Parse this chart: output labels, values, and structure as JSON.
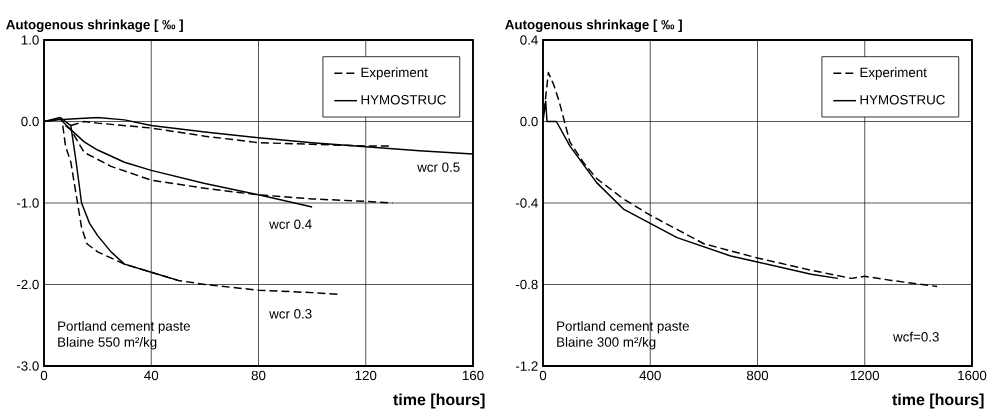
{
  "chart_data": [
    {
      "type": "line",
      "ylabel": "Autogenous shrinkage [ ‰ ]",
      "xlabel": "time [hours]",
      "xlim": [
        0,
        160
      ],
      "xticks": [
        0,
        40,
        80,
        120,
        160
      ],
      "ylim": [
        -3,
        1
      ],
      "yticks": [
        {
          "value": -3,
          "label": "-3.0"
        },
        {
          "value": -2,
          "label": "-2.0"
        },
        {
          "value": -1,
          "label": "-1.0"
        },
        {
          "value": 0,
          "label": "0.0"
        },
        {
          "value": 1,
          "label": "1.0"
        }
      ],
      "grid": true,
      "legend": "top right",
      "series": [
        {
          "name": "Experiment",
          "color": "#000000",
          "line_style": "dashed",
          "x": [
            10,
            15,
            20,
            40,
            60,
            80,
            100,
            120,
            130
          ],
          "values": [
            -0.05,
            0,
            -0.02,
            -0.08,
            -0.18,
            -0.26,
            -0.28,
            -0.3,
            -0.3
          ]
        },
        {
          "name": "HYMOSTRUC",
          "color": "#000000",
          "line_style": "solid",
          "x": [
            0,
            5,
            10,
            20,
            30,
            40,
            60,
            80,
            100,
            120,
            140,
            160
          ],
          "values": [
            0,
            0.02,
            0.03,
            0.05,
            0.02,
            -0.05,
            -0.13,
            -0.2,
            -0.26,
            -0.31,
            -0.36,
            -0.4
          ]
        },
        {
          "color": "#000000",
          "line_style": "dashed",
          "x": [
            8,
            10,
            15,
            25,
            40,
            60,
            80,
            100,
            120,
            130
          ],
          "values": [
            -0.05,
            -0.1,
            -0.38,
            -0.55,
            -0.72,
            -0.82,
            -0.9,
            -0.95,
            -0.98,
            -1.0
          ]
        },
        {
          "color": "#000000",
          "line_style": "solid",
          "x": [
            0,
            6,
            10,
            15,
            20,
            30,
            40,
            60,
            80,
            100
          ],
          "values": [
            0,
            0.03,
            -0.1,
            -0.25,
            -0.35,
            -0.5,
            -0.6,
            -0.76,
            -0.9,
            -1.05
          ]
        },
        {
          "color": "#000000",
          "line_style": "dashed",
          "x": [
            7,
            8,
            10,
            12,
            14,
            16,
            20,
            30,
            40,
            50,
            60,
            80,
            100,
            110
          ],
          "values": [
            -0.05,
            -0.3,
            -0.5,
            -0.9,
            -1.3,
            -1.5,
            -1.6,
            -1.75,
            -1.85,
            -1.95,
            -2.0,
            -2.07,
            -2.1,
            -2.12
          ]
        },
        {
          "color": "#000000",
          "line_style": "solid",
          "x": [
            0,
            6,
            10,
            12,
            14,
            17,
            20,
            25,
            30,
            40,
            50
          ],
          "values": [
            0,
            0.05,
            -0.05,
            -0.5,
            -1.0,
            -1.25,
            -1.4,
            -1.6,
            -1.75,
            -1.85,
            -1.95
          ]
        }
      ],
      "annotations": [
        "wcr 0.5",
        "wcr 0.4",
        "wcr 0.3",
        "Portland cement paste",
        "Blaine 550 m²/kg"
      ]
    },
    {
      "type": "line",
      "ylabel": "Autogenous shrinkage [ ‰ ]",
      "xlabel": "time [hours]",
      "xlim": [
        0,
        1600
      ],
      "xticks": [
        0,
        400,
        800,
        1200,
        1600
      ],
      "ylim": [
        -1.2,
        0.4
      ],
      "yticks": [
        -1.2,
        -0.8,
        -0.4,
        {
          "value": 0,
          "label": "0.0"
        },
        0.4
      ],
      "grid": true,
      "legend": "top right",
      "series": [
        {
          "name": "Experiment",
          "color": "#000000",
          "line_style": "dashed",
          "x": [
            5,
            10,
            20,
            40,
            60,
            80,
            100,
            150,
            200,
            300,
            400,
            500,
            600,
            800,
            1000,
            1150,
            1200,
            1300,
            1470
          ],
          "values": [
            0.05,
            0.12,
            0.24,
            0.18,
            0.1,
            0,
            -0.1,
            -0.2,
            -0.28,
            -0.38,
            -0.46,
            -0.53,
            -0.6,
            -0.67,
            -0.73,
            -0.77,
            -0.76,
            -0.78,
            -0.81
          ]
        },
        {
          "name": "HYMOSTRUC",
          "color": "#000000",
          "line_style": "solid",
          "x": [
            0,
            10,
            15,
            50,
            100,
            200,
            300,
            400,
            500,
            700,
            800,
            1000,
            1100
          ],
          "values": [
            0,
            0.1,
            0,
            0,
            -0.12,
            -0.3,
            -0.43,
            -0.5,
            -0.57,
            -0.66,
            -0.69,
            -0.75,
            -0.77
          ]
        }
      ],
      "annotations": [
        "Portland cement paste",
        "Blaine 300 m²/kg",
        "wcf=0.3"
      ]
    }
  ]
}
